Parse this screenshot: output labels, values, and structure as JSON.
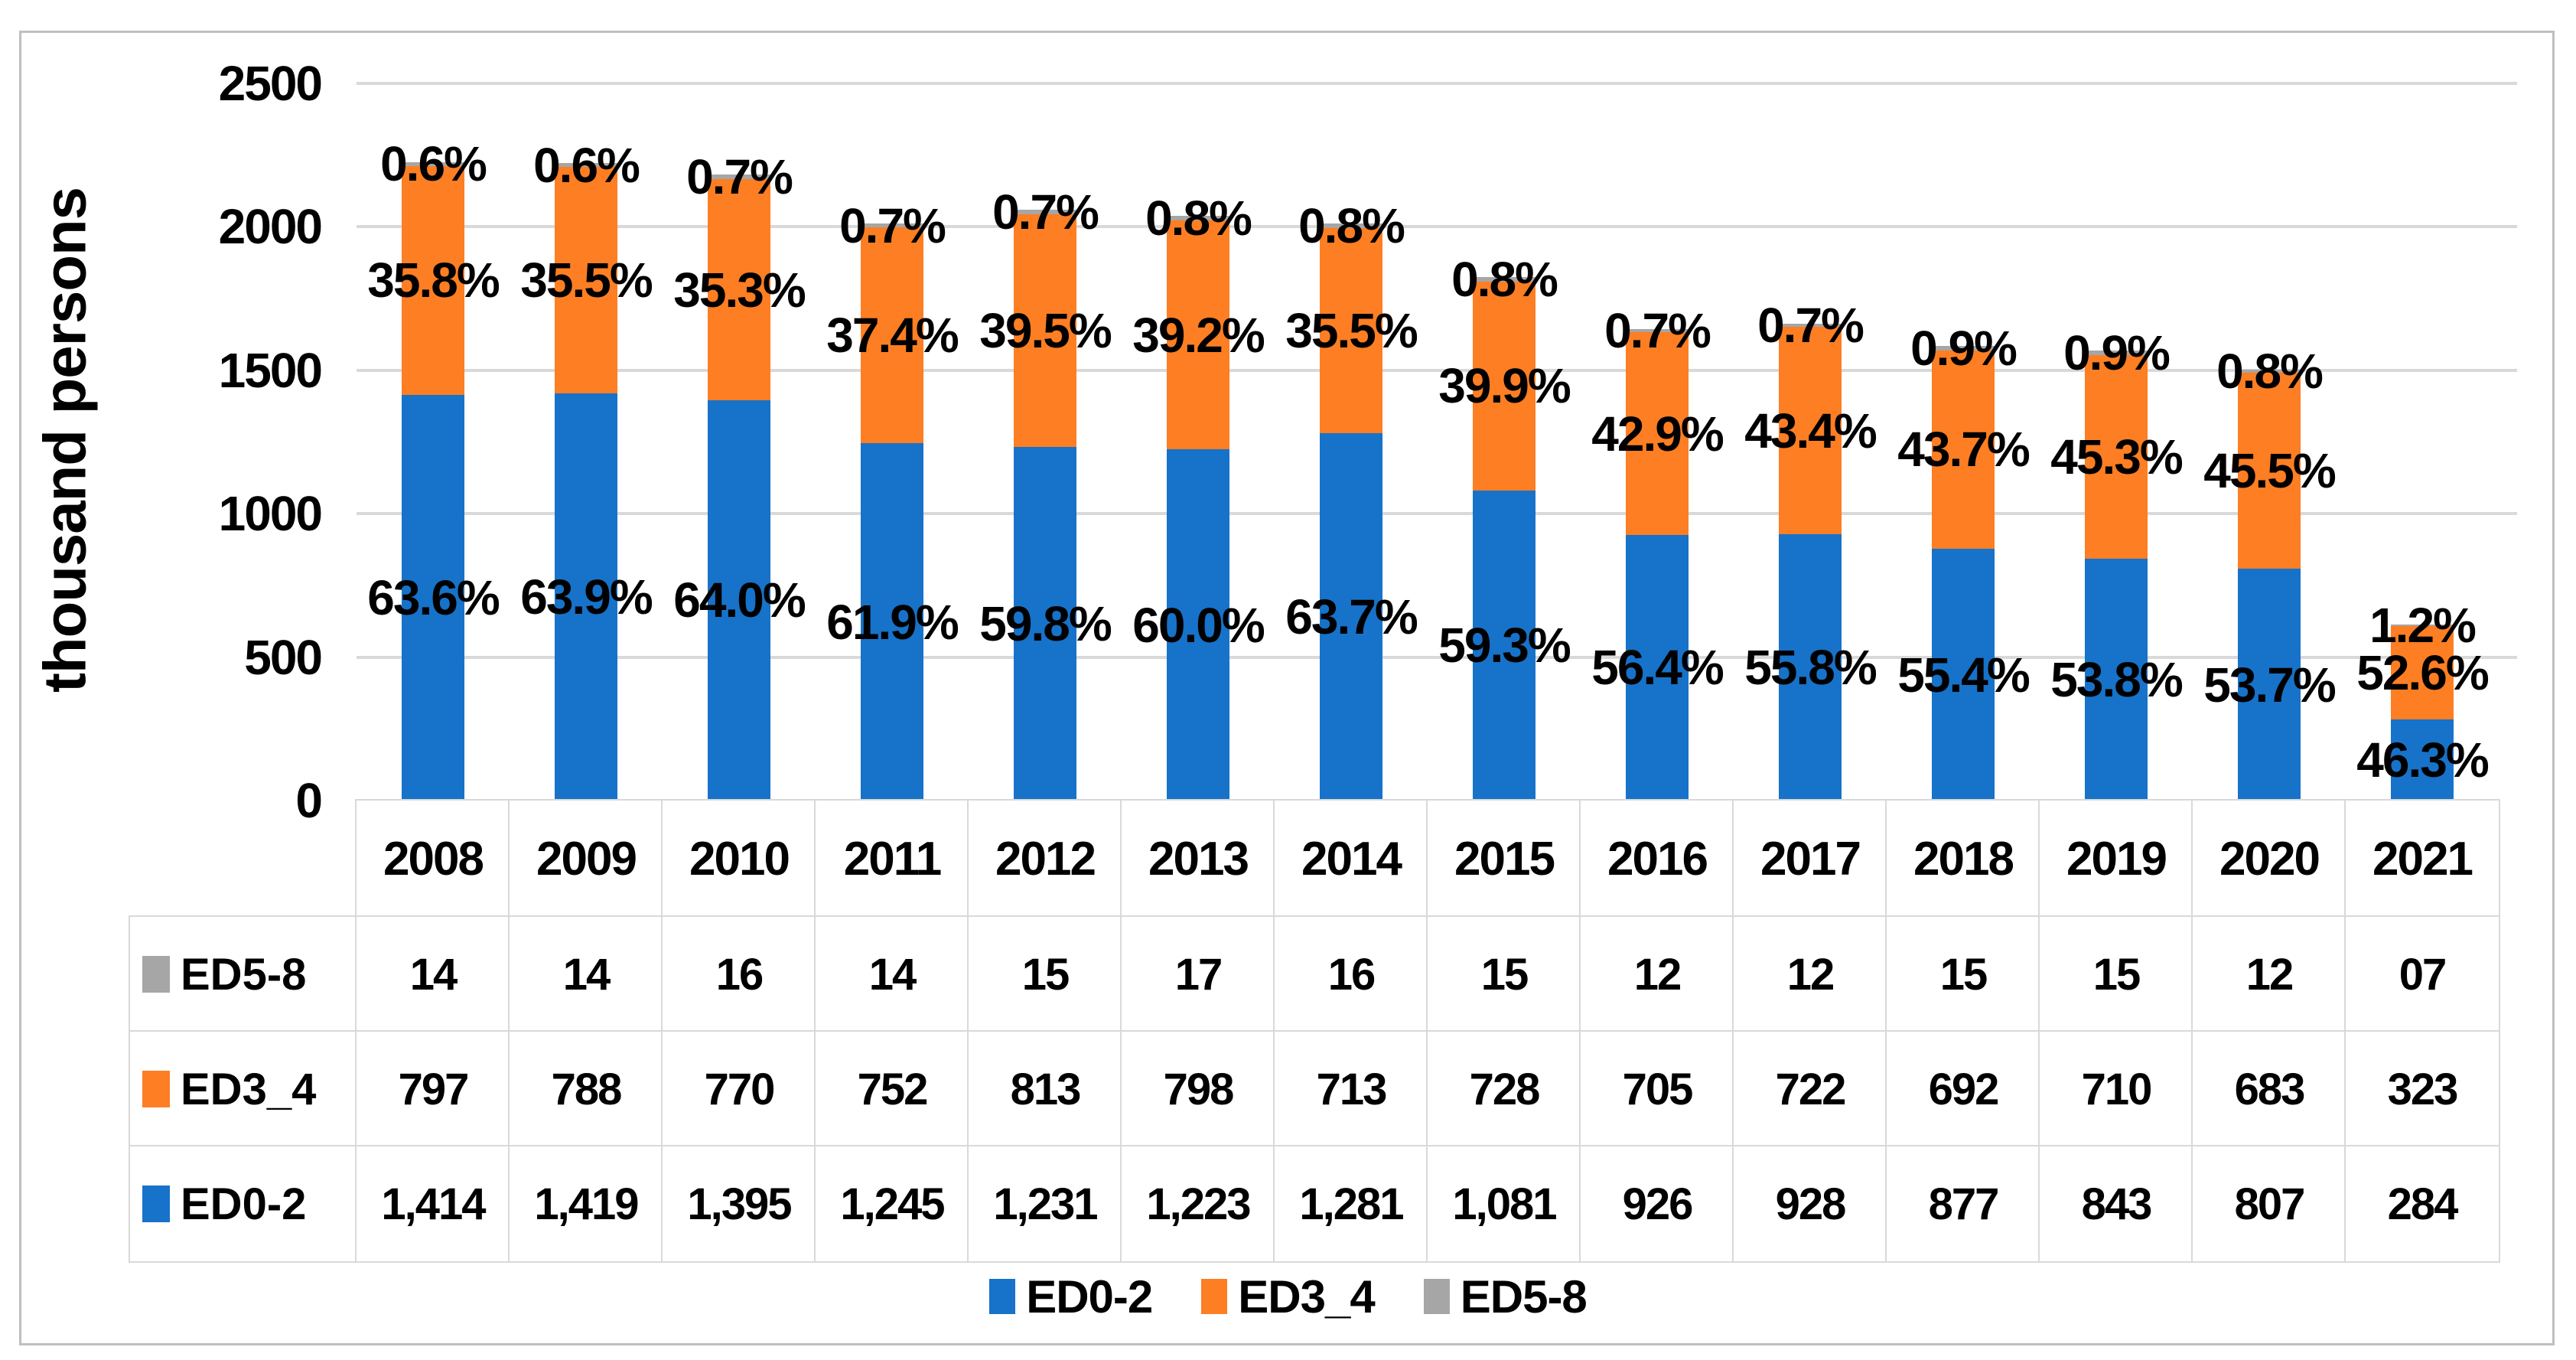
{
  "chart_data": {
    "type": "bar",
    "stacked": true,
    "ylabel": "thousand persons",
    "ylim": [
      0,
      2500
    ],
    "yticks": [
      0,
      500,
      1000,
      1500,
      2000,
      2500
    ],
    "grid": "horizontal",
    "legend_position": "bottom",
    "categories": [
      "2008",
      "2009",
      "2010",
      "2011",
      "2012",
      "2013",
      "2014",
      "2015",
      "2016",
      "2017",
      "2018",
      "2019",
      "2020",
      "2021"
    ],
    "series": [
      {
        "name": "ED0-2",
        "color": "#1772C9",
        "values": [
          1414,
          1419,
          1395,
          1245,
          1231,
          1223,
          1281,
          1081,
          926,
          928,
          877,
          843,
          807,
          284
        ],
        "percents": [
          "63.6%",
          "63.9%",
          "64.0%",
          "61.9%",
          "59.8%",
          "60.0%",
          "63.7%",
          "59.3%",
          "56.4%",
          "55.8%",
          "55.4%",
          "53.8%",
          "53.7%",
          "46.3%"
        ]
      },
      {
        "name": "ED3_4",
        "color": "#FD7E23",
        "values": [
          797,
          788,
          770,
          752,
          813,
          798,
          713,
          728,
          705,
          722,
          692,
          710,
          683,
          323
        ],
        "percents": [
          "35.8%",
          "35.5%",
          "35.3%",
          "37.4%",
          "39.5%",
          "39.2%",
          "35.5%",
          "39.9%",
          "42.9%",
          "43.4%",
          "43.7%",
          "45.3%",
          "45.5%",
          "52.6%"
        ]
      },
      {
        "name": "ED5-8",
        "color": "#A6A6A6",
        "values": [
          14,
          14,
          16,
          14,
          15,
          17,
          16,
          15,
          12,
          12,
          15,
          15,
          12,
          7
        ],
        "percents": [
          "0.6%",
          "0.6%",
          "0.7%",
          "0.7%",
          "0.7%",
          "0.8%",
          "0.8%",
          "0.8%",
          "0.7%",
          "0.7%",
          "0.9%",
          "0.9%",
          "0.8%",
          "1.2%"
        ]
      }
    ],
    "table": {
      "rows": [
        {
          "name": "ED5-8",
          "color": "#A6A6A6",
          "values": [
            "14",
            "14",
            "16",
            "14",
            "15",
            "17",
            "16",
            "15",
            "12",
            "12",
            "15",
            "15",
            "12",
            "07"
          ]
        },
        {
          "name": "ED3_4",
          "color": "#FD7E23",
          "values": [
            "797",
            "788",
            "770",
            "752",
            "813",
            "798",
            "713",
            "728",
            "705",
            "722",
            "692",
            "710",
            "683",
            "323"
          ]
        },
        {
          "name": "ED0-2",
          "color": "#1772C9",
          "values": [
            "1,414",
            "1,419",
            "1,395",
            "1,245",
            "1,231",
            "1,223",
            "1,281",
            "1,081",
            "926",
            "928",
            "877",
            "843",
            "807",
            "284"
          ]
        }
      ]
    },
    "legend": [
      "ED0-2",
      "ED3_4",
      "ED5-8"
    ]
  },
  "colors": {
    "gridline": "#D9D9D9",
    "table_border": "#D9D9D9",
    "frame_border": "#BFBFBF",
    "text": "#000000"
  }
}
